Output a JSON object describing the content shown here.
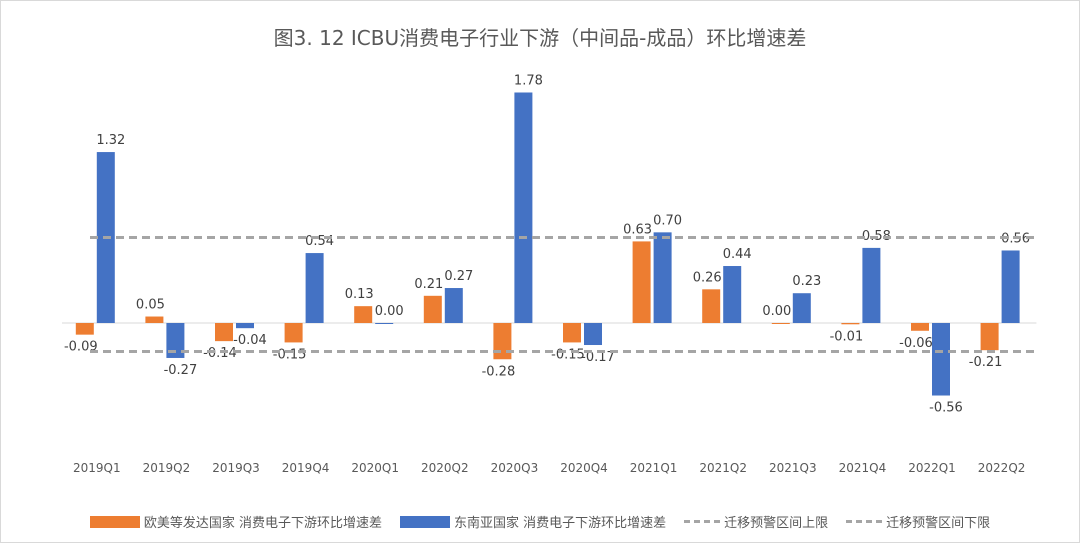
{
  "chart_data": {
    "type": "bar",
    "title": "图3. 12  ICBU消费电子行业下游（中间品-成品）环比增速差",
    "categories": [
      "2019Q1",
      "2019Q2",
      "2019Q3",
      "2019Q4",
      "2020Q1",
      "2020Q2",
      "2020Q3",
      "2020Q4",
      "2021Q1",
      "2021Q2",
      "2021Q3",
      "2021Q4",
      "2022Q1",
      "2022Q2"
    ],
    "series": [
      {
        "name": "欧美等发达国家 消费电子下游环比增速差",
        "type": "bar",
        "color": "#ed7d31",
        "values": [
          -0.09,
          0.05,
          -0.14,
          -0.15,
          0.13,
          0.21,
          -0.28,
          -0.15,
          0.63,
          0.26,
          0.0,
          -0.01,
          -0.06,
          -0.21
        ]
      },
      {
        "name": "东南亚国家 消费电子下游环比增速差",
        "type": "bar",
        "color": "#4472c4",
        "values": [
          1.32,
          -0.27,
          -0.04,
          0.54,
          0.0,
          0.27,
          1.78,
          -0.17,
          0.7,
          0.44,
          0.23,
          0.58,
          -0.56,
          0.56
        ]
      },
      {
        "name": "迁移预警区间上限",
        "type": "dashed-line",
        "color": "#a5a5a5",
        "value": 0.66
      },
      {
        "name": "迁移预警区间下限",
        "type": "dashed-line",
        "color": "#a5a5a5",
        "value": -0.22
      }
    ],
    "ylim": [
      -1.0,
      2.0
    ],
    "grid": false,
    "legend": "bottom",
    "data_labels": true
  }
}
